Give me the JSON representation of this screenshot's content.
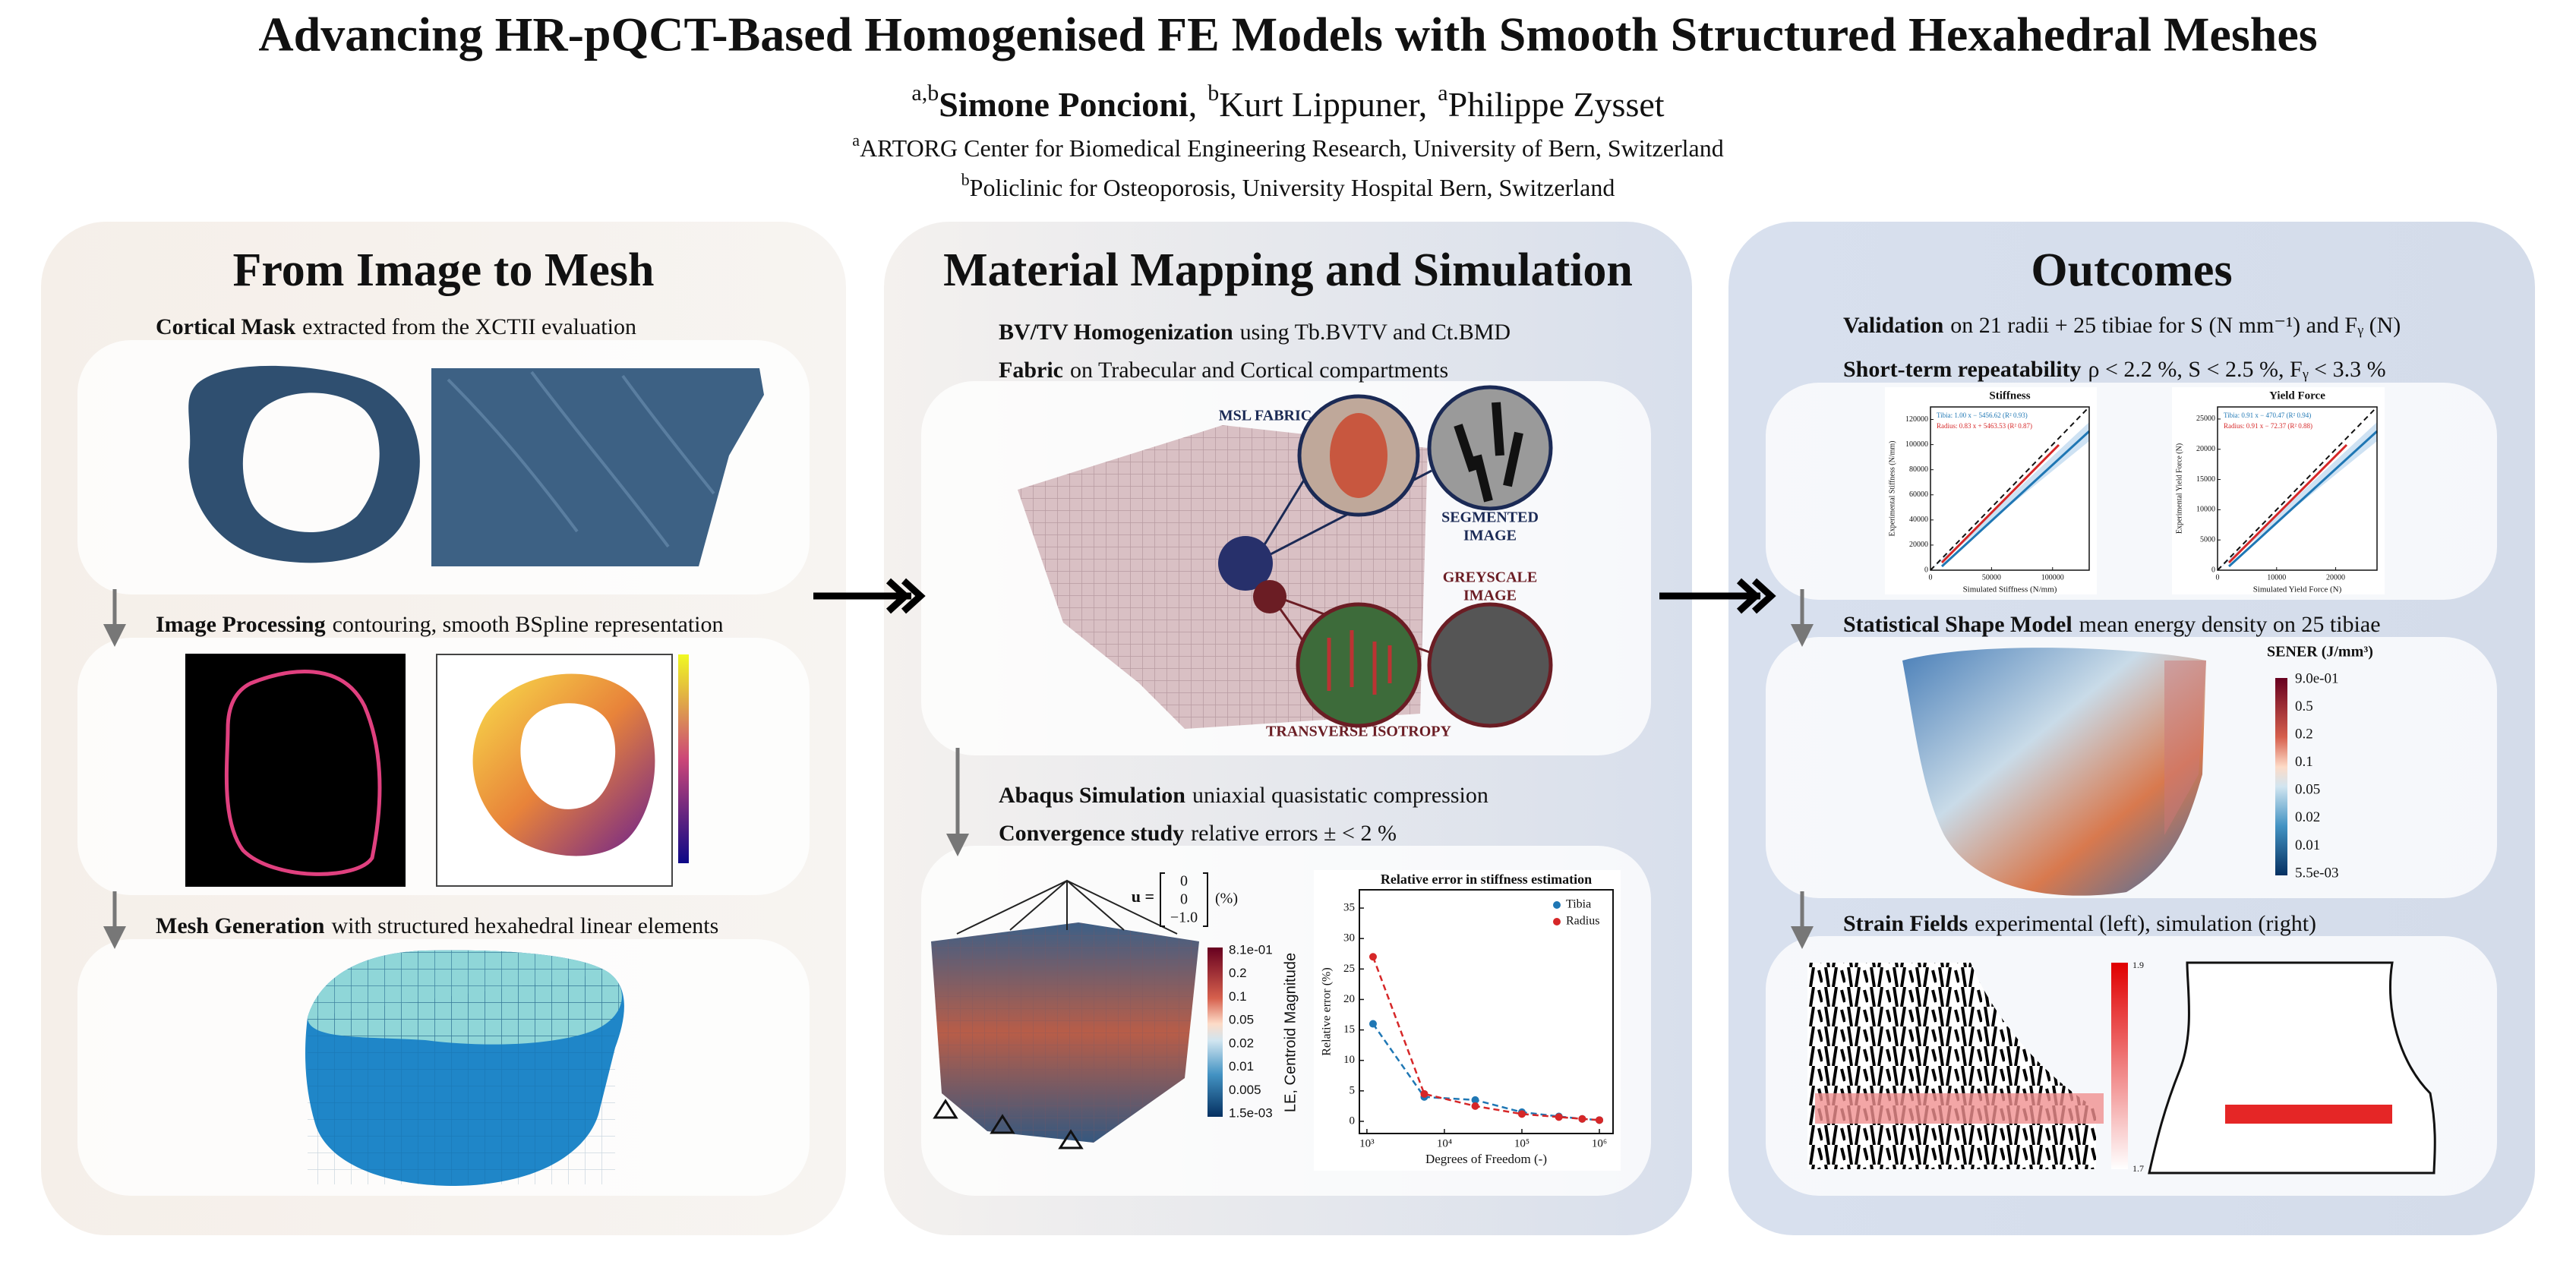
{
  "header": {
    "title": "Advancing HR-pQCT-Based Homogenised FE Models with Smooth Structured Hexahedral Meshes",
    "authors": [
      {
        "sup": "a,b",
        "name": "Simone Poncioni",
        "sep": ","
      },
      {
        "sup": "b",
        "name": "Kurt Lippuner",
        "sep": ","
      },
      {
        "sup": "a",
        "name": "Philippe Zysset"
      }
    ],
    "affiliations": [
      {
        "sup": "a",
        "text": "ARTORG Center for Biomedical Engineering Research, University of Bern, Switzerland"
      },
      {
        "sup": "b",
        "text": "Policlinic for Osteoporosis, University Hospital Bern, Switzerland"
      }
    ]
  },
  "panels": [
    {
      "title": "From Image to Mesh",
      "sections": [
        {
          "label": "Cortical Mask",
          "text": "extracted from the XCTII evaluation"
        },
        {
          "label": "Image Processing",
          "text": "contouring, smooth BSpline representation"
        },
        {
          "label": "Mesh Generation",
          "text": "with structured hexahedral linear elements"
        }
      ]
    },
    {
      "title": "Material Mapping and Simulation",
      "sections": [
        {
          "label": "BV/TV Homogenization",
          "text": "using Tb.BVTV and Ct.BMD"
        },
        {
          "label": "Fabric",
          "text": "on Trabecular and Cortical compartments"
        },
        {
          "label": "Abaqus Simulation",
          "text": "uniaxial quasistatic compression"
        },
        {
          "label": "Convergence study",
          "text": "relative errors ± < 2 %"
        }
      ],
      "fabric_labels": [
        {
          "lines": [
            "MSL FABRIC"
          ]
        },
        {
          "lines": [
            "SEGMENTED",
            "IMAGE"
          ]
        },
        {
          "lines": [
            "GREYSCALE",
            "IMAGE"
          ]
        },
        {
          "lines": [
            "TRANSVERSE ISOTROPY"
          ]
        }
      ],
      "load": {
        "symbol": "u =",
        "vector": [
          "0",
          "0",
          "−1.0"
        ],
        "unit": "(%)"
      },
      "colorbar": {
        "title": "LE, Centroid Magnitude",
        "labels": [
          "8.1e-01",
          "0.2",
          "0.1",
          "0.05",
          "0.02",
          "0.01",
          "0.005",
          "1.5e-03"
        ]
      },
      "convergence_plot": {
        "title": "Relative error in stiffness estimation",
        "xlabel": "Degrees of Freedom (-)",
        "ylabel": "Relative error (%)",
        "x": [
          1200,
          5500,
          25000,
          100000,
          300000,
          600000,
          1000000
        ],
        "series": [
          {
            "name": "Tibia",
            "color": "#1f77b4",
            "values": [
              16,
              4,
              3.5,
              1.5,
              0.8,
              0.4,
              0.2
            ]
          },
          {
            "name": "Radius",
            "color": "#d62728",
            "values": [
              27,
              4.5,
              2.5,
              1.2,
              0.7,
              0.4,
              0.2
            ]
          }
        ],
        "xlim": [
          800,
          1500000
        ],
        "xticks": [
          {
            "value": 1000,
            "label": "10³"
          },
          {
            "value": 10000,
            "label": "10⁴"
          },
          {
            "value": 100000,
            "label": "10⁵"
          },
          {
            "value": 1000000,
            "label": "10⁶"
          }
        ],
        "ylim": [
          -2,
          38
        ],
        "yticks": [
          0,
          5,
          10,
          15,
          20,
          25,
          30,
          35
        ],
        "log_x": true
      }
    },
    {
      "title": "Outcomes",
      "sections": [
        {
          "label": "Validation",
          "text": "on 21 radii + 25 tibiae for S (N mm⁻¹) and Fᵧ (N)"
        },
        {
          "label": "Short-term repeatability",
          "text": "ρ < 2.2 %, S < 2.5 %, Fᵧ < 3.3 %"
        },
        {
          "label": "Statistical Shape Model",
          "text": "mean energy density on 25 tibiae"
        },
        {
          "label": "Strain Fields",
          "text": "experimental (left), simulation (right)"
        }
      ],
      "plots": [
        {
          "title": "Stiffness",
          "xlabel": "Simulated Stiffness (N/mm)",
          "ylabel": "Experimental Stiffness (N/mm)",
          "legend": [
            "Tibia: 1.00 x − 5456.62 (R² 0.93)",
            "Radius: 0.83 x + 5463.53 (R² 0.87)"
          ],
          "xlim": [
            0,
            130000
          ],
          "ylim": [
            0,
            130000
          ],
          "xticks": [
            0,
            50000,
            100000
          ],
          "yticks": [
            0,
            20000,
            40000,
            60000,
            80000,
            100000,
            120000
          ]
        },
        {
          "title": "Yield Force",
          "xlabel": "Simulated Yield Force (N)",
          "ylabel": "Experimental Yield Force (N)",
          "legend": [
            "Tibia: 0.91 x − 470.47 (R² 0.94)",
            "Radius: 0.91 x − 72.37 (R² 0.88)"
          ],
          "xlim": [
            0,
            27000
          ],
          "ylim": [
            0,
            27000
          ],
          "xticks": [
            0,
            10000,
            20000
          ],
          "yticks": [
            0,
            5000,
            10000,
            15000,
            20000,
            25000
          ]
        }
      ],
      "colorbar": {
        "title": "SENER (J/mm³)",
        "labels": [
          "9.0e-01",
          "0.5",
          "0.2",
          "0.1",
          "0.05",
          "0.02",
          "0.01",
          "5.5e-03"
        ]
      },
      "strain_colorbar": {
        "labels": [
          "1.9",
          "1.7"
        ]
      }
    }
  ]
}
